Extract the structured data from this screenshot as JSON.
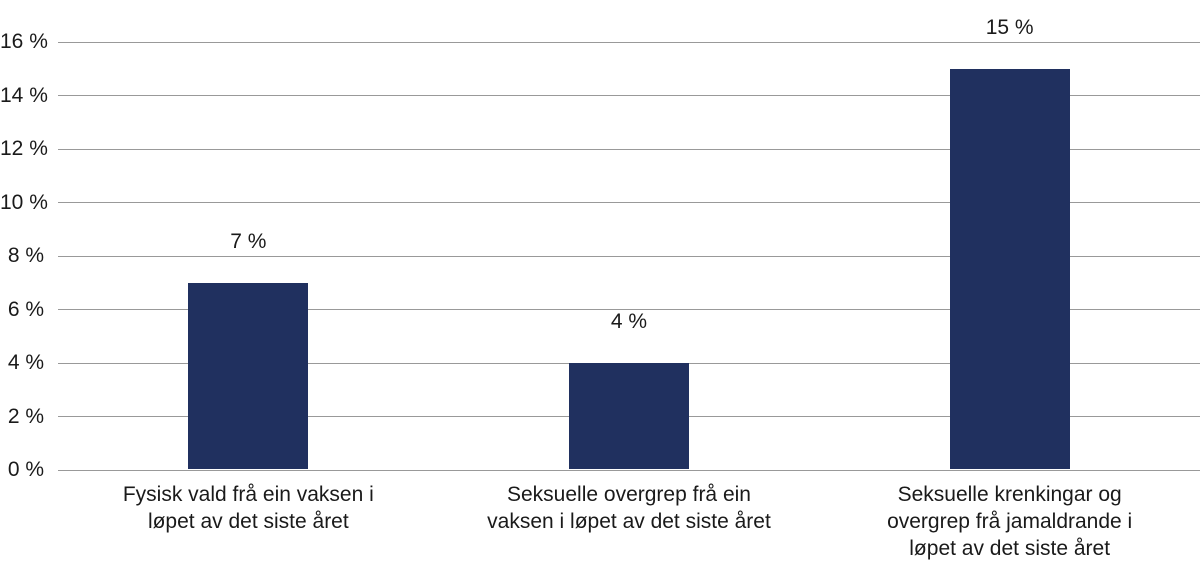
{
  "chart_data": {
    "type": "bar",
    "title": "",
    "xlabel": "",
    "ylabel": "",
    "ylim": [
      0,
      16
    ],
    "y_tick_step": 2,
    "grid": true,
    "legend": "none",
    "y_tick_labels": [
      "0 %",
      "2 %",
      "4 %",
      "6 %",
      "8 %",
      "10 %",
      "12 %",
      "14 %",
      "16 %"
    ],
    "categories": [
      {
        "label": "Fysisk vald frå ein vaksen i løpet av det siste året",
        "label_lines": [
          "Fysisk vald frå ein vaksen i",
          "løpet av det siste året"
        ]
      },
      {
        "label": "Seksuelle overgrep frå ein vaksen i løpet av det siste året",
        "label_lines": [
          "Seksuelle overgrep frå ein",
          "vaksen i løpet av det siste året"
        ]
      },
      {
        "label": "Seksuelle krenkingar og overgrep frå jamaldrande i løpet av det siste året",
        "label_lines": [
          "Seksuelle krenkingar og",
          "overgrep frå jamaldrande i",
          "løpet av det siste året"
        ]
      }
    ],
    "values": [
      7,
      4,
      15
    ],
    "value_labels": [
      "7 %",
      "4 %",
      "15 %"
    ],
    "colors": {
      "bar": "#20305f",
      "gridline": "#999999",
      "text": "#1a1a1a",
      "background": "#ffffff"
    }
  }
}
